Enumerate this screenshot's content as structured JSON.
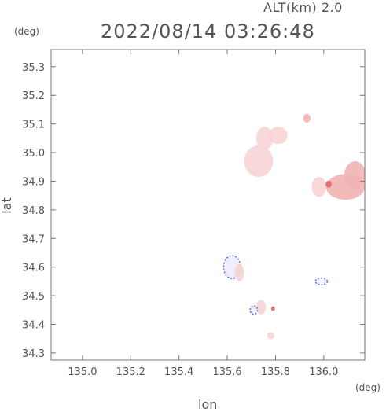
{
  "header": {
    "alt_label": "ALT(km) 2.0",
    "datetime": "2022/08/14 03:26:48"
  },
  "chart_data": {
    "type": "heatmap",
    "xlabel": "lon",
    "ylabel": "lat",
    "x_unit": "(deg)",
    "y_unit": "(deg)",
    "xlim": [
      134.87,
      136.17
    ],
    "ylim": [
      34.275,
      35.36
    ],
    "x_ticks": [
      135.0,
      135.2,
      135.4,
      135.6,
      135.8,
      136.0
    ],
    "x_tick_labels": [
      "135.0",
      "135.2",
      "135.4",
      "135.6",
      "135.8",
      "136.0"
    ],
    "y_ticks": [
      34.3,
      34.4,
      34.5,
      34.6,
      34.7,
      34.8,
      34.9,
      35.0,
      35.1,
      35.2,
      35.3
    ],
    "y_tick_labels": [
      "34.3",
      "34.4",
      "34.5",
      "34.6",
      "34.7",
      "34.8",
      "34.9",
      "35.0",
      "35.1",
      "35.2",
      "35.3"
    ],
    "grid": false,
    "colors": {
      "positive_light": "#f7d4d4",
      "positive_mid": "#f2b3b3",
      "positive_strong": "#e8606a",
      "negative": "#6070e0"
    },
    "cells": [
      {
        "lon": 135.73,
        "lat": 34.97,
        "rx": 0.06,
        "ry": 0.055,
        "tone": "light"
      },
      {
        "lon": 135.755,
        "lat": 35.05,
        "rx": 0.035,
        "ry": 0.04,
        "tone": "light"
      },
      {
        "lon": 135.81,
        "lat": 35.06,
        "rx": 0.04,
        "ry": 0.03,
        "tone": "light"
      },
      {
        "lon": 135.93,
        "lat": 35.12,
        "rx": 0.015,
        "ry": 0.015,
        "tone": "mid"
      },
      {
        "lon": 136.09,
        "lat": 34.88,
        "rx": 0.08,
        "ry": 0.045,
        "tone": "mid"
      },
      {
        "lon": 136.13,
        "lat": 34.92,
        "rx": 0.045,
        "ry": 0.05,
        "tone": "mid"
      },
      {
        "lon": 135.98,
        "lat": 34.88,
        "rx": 0.03,
        "ry": 0.035,
        "tone": "light"
      },
      {
        "lon": 136.02,
        "lat": 34.89,
        "rx": 0.012,
        "ry": 0.012,
        "tone": "strong"
      },
      {
        "lon": 135.62,
        "lat": 34.6,
        "rx": 0.035,
        "ry": 0.04,
        "tone": "negative"
      },
      {
        "lon": 135.65,
        "lat": 34.58,
        "rx": 0.02,
        "ry": 0.03,
        "tone": "light"
      },
      {
        "lon": 135.74,
        "lat": 34.46,
        "rx": 0.02,
        "ry": 0.025,
        "tone": "light"
      },
      {
        "lon": 135.71,
        "lat": 34.45,
        "rx": 0.015,
        "ry": 0.015,
        "tone": "negative"
      },
      {
        "lon": 135.78,
        "lat": 34.36,
        "rx": 0.015,
        "ry": 0.012,
        "tone": "light"
      },
      {
        "lon": 135.99,
        "lat": 34.55,
        "rx": 0.025,
        "ry": 0.012,
        "tone": "negative"
      },
      {
        "lon": 135.79,
        "lat": 34.455,
        "rx": 0.008,
        "ry": 0.008,
        "tone": "strong"
      }
    ]
  }
}
